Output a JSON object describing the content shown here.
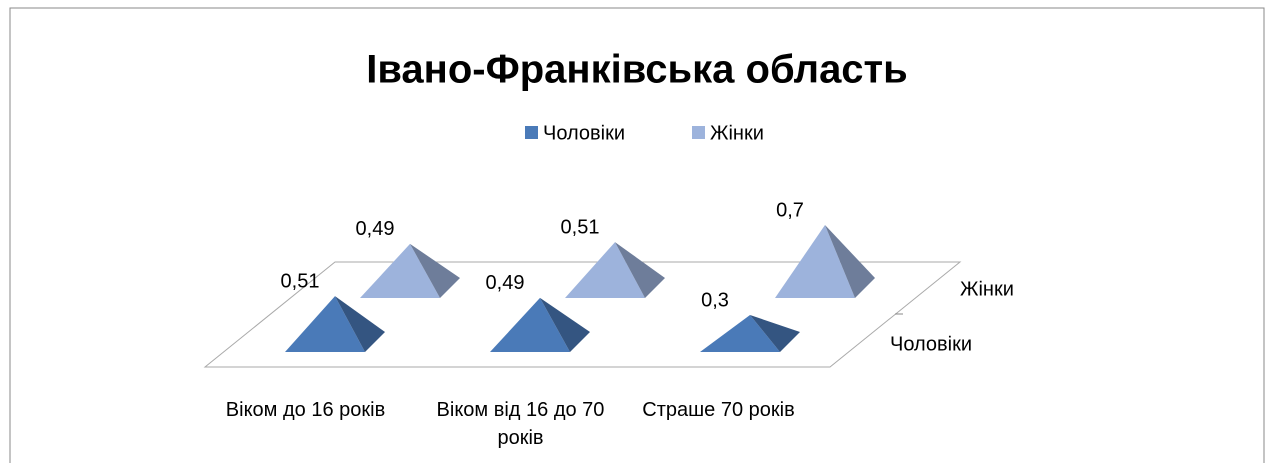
{
  "chart_data": {
    "type": "pyramid3d",
    "title": "Івано-Франківська область",
    "categories": [
      "Віком до 16 років",
      "Віком від 16 до 70 років",
      "Страше 70 років"
    ],
    "series": [
      {
        "name": "Чоловіки",
        "color": "#4a7ab8",
        "values": [
          0.51,
          0.49,
          0.3
        ],
        "value_labels": [
          "0,51",
          "0,49",
          "0,3"
        ]
      },
      {
        "name": "Жінки",
        "color": "#9db3dc",
        "values": [
          0.49,
          0.51,
          0.7
        ],
        "value_labels": [
          "0,49",
          "0,51",
          "0,7"
        ]
      }
    ],
    "legend": "top"
  }
}
